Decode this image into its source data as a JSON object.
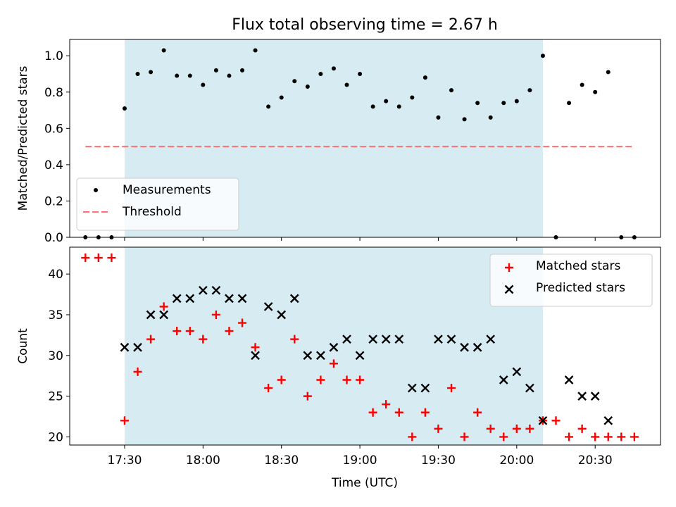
{
  "chart_data": {
    "title": "Flux total observing time = 2.67 h",
    "xlabel": "Time (UTC)",
    "x_ticks": [
      "17:30",
      "18:00",
      "18:30",
      "19:00",
      "19:30",
      "20:00",
      "20:30"
    ],
    "x_tick_values": [
      "17:30",
      "18:00",
      "18:30",
      "19:00",
      "19:30",
      "20:00",
      "20:30"
    ],
    "xlim": [
      "17:09",
      "20:55"
    ],
    "shaded_interval": [
      "17:30",
      "20:10"
    ],
    "shade_color": "#add8e6",
    "times": [
      "17:15",
      "17:20",
      "17:25",
      "17:30",
      "17:35",
      "17:40",
      "17:45",
      "17:50",
      "17:55",
      "18:00",
      "18:05",
      "18:10",
      "18:15",
      "18:20",
      "18:25",
      "18:30",
      "18:35",
      "18:40",
      "18:45",
      "18:50",
      "18:55",
      "19:00",
      "19:05",
      "19:10",
      "19:15",
      "19:20",
      "19:25",
      "19:30",
      "19:35",
      "19:40",
      "19:45",
      "19:50",
      "19:55",
      "20:00",
      "20:05",
      "20:10",
      "20:15",
      "20:20",
      "20:25",
      "20:30",
      "20:35",
      "20:40",
      "20:45"
    ],
    "panels": [
      {
        "type": "scatter",
        "ylabel": "Matched/Predicted stars",
        "ylim": [
          0,
          1.09
        ],
        "y_ticks": [
          "0.0",
          "0.2",
          "0.4",
          "0.6",
          "0.8",
          "1.0"
        ],
        "y_tick_values": [
          0,
          0.2,
          0.4,
          0.6,
          0.8,
          1.0
        ],
        "legend_position": "lower-left",
        "series": [
          {
            "name": "Measurements",
            "kind": "dot",
            "color": "#000000",
            "values": [
              0,
              0,
              0,
              0.71,
              0.9,
              0.91,
              1.03,
              0.89,
              0.89,
              0.84,
              0.92,
              0.89,
              0.92,
              1.03,
              0.72,
              0.77,
              0.86,
              0.83,
              0.9,
              0.93,
              0.84,
              0.9,
              0.72,
              0.75,
              0.72,
              0.77,
              0.88,
              0.66,
              0.81,
              0.65,
              0.74,
              0.66,
              0.74,
              0.75,
              0.81,
              1.0,
              0,
              0.74,
              0.84,
              0.8,
              0.91,
              0,
              0
            ]
          },
          {
            "name": "Threshold",
            "kind": "dashed-line",
            "color": "#ff7070",
            "x_range": [
              "17:15",
              "20:45"
            ],
            "value": 0.5
          }
        ]
      },
      {
        "type": "scatter",
        "ylabel": "Count",
        "ylim": [
          19,
          43.3
        ],
        "y_ticks": [
          "20",
          "25",
          "30",
          "35",
          "40"
        ],
        "y_tick_values": [
          20,
          25,
          30,
          35,
          40
        ],
        "legend_position": "upper-right",
        "series": [
          {
            "name": "Matched stars",
            "kind": "plus",
            "color": "#ff0000",
            "values": [
              42,
              42,
              42,
              22,
              28,
              32,
              36,
              33,
              33,
              32,
              35,
              33,
              34,
              31,
              26,
              27,
              32,
              25,
              27,
              29,
              27,
              27,
              23,
              24,
              23,
              20,
              23,
              21,
              26,
              20,
              23,
              21,
              20,
              21,
              21,
              22,
              22,
              20,
              21,
              20,
              20,
              20,
              20
            ]
          },
          {
            "name": "Predicted stars",
            "kind": "x",
            "color": "#000000",
            "values": [
              null,
              null,
              null,
              31,
              31,
              35,
              35,
              37,
              37,
              38,
              38,
              37,
              37,
              30,
              36,
              35,
              37,
              30,
              30,
              31,
              32,
              30,
              32,
              32,
              32,
              26,
              26,
              32,
              32,
              31,
              31,
              32,
              27,
              28,
              26,
              22,
              null,
              27,
              25,
              25,
              22,
              null,
              null
            ]
          }
        ]
      }
    ]
  }
}
